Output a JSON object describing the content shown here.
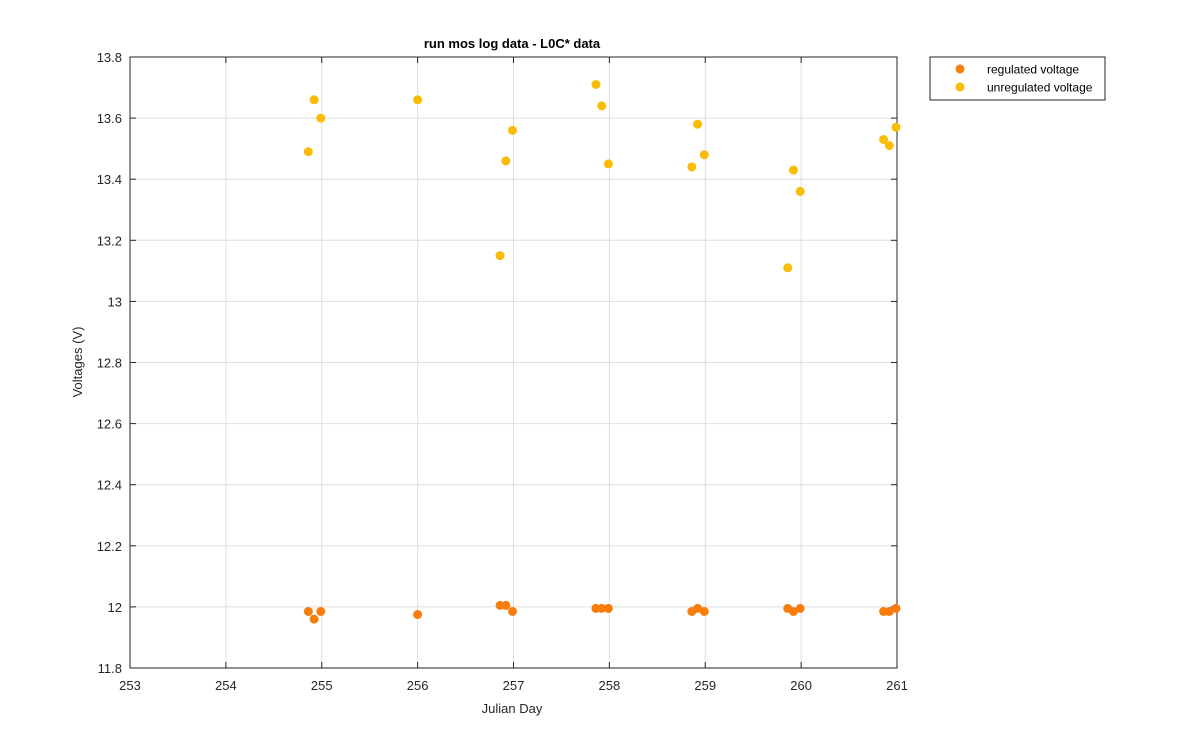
{
  "chart_data": {
    "type": "scatter",
    "title": "run mos log data - L0C* data",
    "xlabel": "Julian Day",
    "ylabel": "Voltages (V)",
    "xlim": [
      253,
      261
    ],
    "ylim": [
      11.8,
      13.8
    ],
    "xticks": [
      253,
      254,
      255,
      256,
      257,
      258,
      259,
      260,
      261
    ],
    "yticks": [
      11.8,
      12,
      12.2,
      12.4,
      12.6,
      12.8,
      13,
      13.2,
      13.4,
      13.6,
      13.8
    ],
    "xtick_labels": [
      "253",
      "254",
      "255",
      "256",
      "257",
      "258",
      "259",
      "260",
      "261"
    ],
    "ytick_labels": [
      "11.8",
      "12",
      "12.2",
      "12.4",
      "12.6",
      "12.8",
      "13",
      "13.2",
      "13.4",
      "13.6",
      "13.8"
    ],
    "grid": true,
    "legend_placement": "outside-top-right",
    "series": [
      {
        "name": "regulated voltage",
        "color": "#f97d0c",
        "points": [
          [
            254.86,
            11.985
          ],
          [
            254.92,
            11.96
          ],
          [
            254.99,
            11.985
          ],
          [
            256.0,
            11.975
          ],
          [
            256.86,
            12.005
          ],
          [
            256.92,
            12.005
          ],
          [
            256.99,
            11.985
          ],
          [
            257.86,
            11.995
          ],
          [
            257.92,
            11.995
          ],
          [
            257.99,
            11.995
          ],
          [
            258.86,
            11.985
          ],
          [
            258.92,
            11.995
          ],
          [
            258.99,
            11.985
          ],
          [
            259.86,
            11.995
          ],
          [
            259.92,
            11.985
          ],
          [
            259.99,
            11.995
          ],
          [
            260.86,
            11.985
          ],
          [
            260.92,
            11.985
          ],
          [
            260.99,
            11.995
          ]
        ]
      },
      {
        "name": "unregulated voltage",
        "color": "#fbbc05",
        "points": [
          [
            254.86,
            13.49
          ],
          [
            254.92,
            13.66
          ],
          [
            254.99,
            13.6
          ],
          [
            256.0,
            13.66
          ],
          [
            256.86,
            13.15
          ],
          [
            256.92,
            13.46
          ],
          [
            256.99,
            13.56
          ],
          [
            257.86,
            13.71
          ],
          [
            257.92,
            13.64
          ],
          [
            257.99,
            13.45
          ],
          [
            258.86,
            13.44
          ],
          [
            258.92,
            13.58
          ],
          [
            258.99,
            13.48
          ],
          [
            259.86,
            13.11
          ],
          [
            259.92,
            13.43
          ],
          [
            259.99,
            13.36
          ],
          [
            260.86,
            13.53
          ],
          [
            260.92,
            13.51
          ],
          [
            260.99,
            13.57
          ]
        ]
      }
    ]
  }
}
